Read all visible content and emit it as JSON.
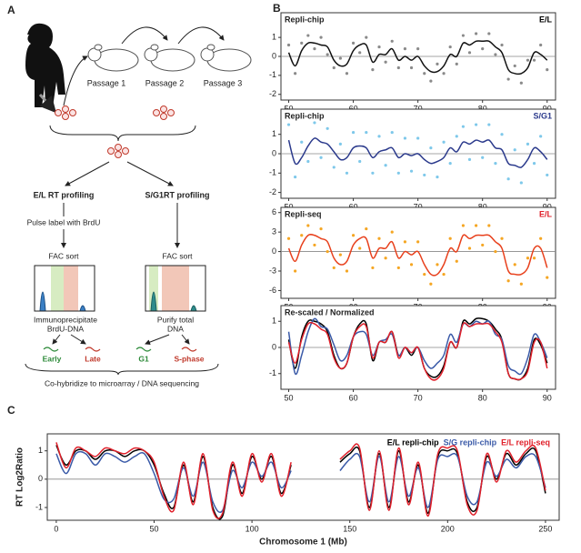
{
  "panel_labels": [
    "A",
    "B",
    "C"
  ],
  "panel_a": {
    "passages": [
      "Passage 1",
      "Passage 2",
      "Passage 3"
    ],
    "left_title": "E/L RT profiling",
    "right_title": "S/G1RT profiling",
    "pulse": "Pulse label with BrdU",
    "left_sort": "FAC sort",
    "right_sort": "FAC sort",
    "left_step": [
      "Immunoprecipitate",
      "BrdU-DNA"
    ],
    "right_step": [
      "Purify total",
      "DNA"
    ],
    "fractions": [
      "Early",
      "Late",
      "G1",
      "S-phase"
    ],
    "footer": "Co-hybridize to microarray / DNA sequencing"
  },
  "chart_data": [
    {
      "type": "line",
      "title": "Repli-chip",
      "label": "E/L",
      "label_color": "#000000",
      "x": [
        50,
        51,
        52,
        53,
        54,
        55,
        56,
        57,
        58,
        59,
        60,
        61,
        62,
        63,
        64,
        65,
        66,
        67,
        68,
        69,
        70,
        71,
        72,
        73,
        74,
        75,
        76,
        77,
        78,
        79,
        80,
        81,
        82,
        83,
        84,
        85,
        86,
        87,
        88,
        89,
        90
      ],
      "xlim": [
        48.8,
        91.3
      ],
      "xticks": [
        50,
        60,
        70,
        80,
        90
      ],
      "ylim": [
        -2.3,
        2.3
      ],
      "yticks": [
        -2,
        -1,
        0,
        1
      ],
      "hline": 0,
      "series": [
        {
          "style": "points",
          "color": "#8a8a8a",
          "values": [
            0.6,
            -0.9,
            0.7,
            1.1,
            0.4,
            1,
            0.1,
            -0.6,
            -0.1,
            -0.9,
            0.7,
            0.2,
            1,
            -0.7,
            0.5,
            -0.3,
            0.8,
            -0.6,
            0.4,
            -0.6,
            0.4,
            -0.9,
            -1.3,
            -0.4,
            -0.9,
            0.5,
            -0.4,
            1.1,
            0.2,
            1.2,
            0.4,
            1.2,
            0.1,
            0.6,
            -1.2,
            -0.5,
            -1.4,
            -0.2,
            -0.2,
            0.6,
            -0.7
          ]
        },
        {
          "style": "line",
          "color": "#111111",
          "values": [
            0.2,
            -0.5,
            0.3,
            0.7,
            0.7,
            0.6,
            0.5,
            -0.2,
            -0.5,
            -0.4,
            0.3,
            0.6,
            0.6,
            -0.3,
            0.1,
            0.1,
            0.4,
            -0.2,
            0,
            -0.2,
            0,
            -0.5,
            -0.8,
            -0.8,
            -0.5,
            0.1,
            0,
            0.7,
            0.6,
            0.8,
            0.8,
            0.8,
            0.5,
            0.2,
            -0.7,
            -0.9,
            -0.9,
            -0.6,
            0.2,
            0.1,
            -0.2
          ]
        }
      ]
    },
    {
      "type": "line",
      "title": "Repli-chip",
      "label": "S/G1",
      "label_color": "#2b3a8c",
      "x": [
        50,
        51,
        52,
        53,
        54,
        55,
        56,
        57,
        58,
        59,
        60,
        61,
        62,
        63,
        64,
        65,
        66,
        67,
        68,
        69,
        70,
        71,
        72,
        73,
        74,
        75,
        76,
        77,
        78,
        79,
        80,
        81,
        82,
        83,
        84,
        85,
        86,
        87,
        88,
        89,
        90
      ],
      "xlim": [
        48.8,
        91.3
      ],
      "xticks": [
        50,
        60,
        70,
        80,
        90
      ],
      "ylim": [
        -2.3,
        2.3
      ],
      "yticks": [
        -2,
        -1,
        0,
        1
      ],
      "hline": 0,
      "series": [
        {
          "style": "points",
          "color": "#7ec8ea",
          "values": [
            1.5,
            -1.2,
            0.6,
            -0.4,
            1.6,
            -0.2,
            1.3,
            -0.7,
            0.5,
            -1,
            1.1,
            -0.4,
            1.1,
            -1,
            0.9,
            -0.6,
            1.1,
            -1,
            0.8,
            -0.9,
            0.8,
            -1.1,
            0.3,
            -1.2,
            0.6,
            -0.5,
            0.9,
            1.4,
            -0.3,
            1.5,
            -0.2,
            1.5,
            -0.5,
            1,
            -1.3,
            0.2,
            -1.5,
            0.5,
            -0.5,
            0.9,
            -1.1
          ]
        },
        {
          "style": "line",
          "color": "#2b3a8c",
          "values": [
            0.7,
            -0.5,
            -0.2,
            0.4,
            0.8,
            0.6,
            0.5,
            0.1,
            -0.3,
            -0.2,
            0.3,
            0.4,
            0.3,
            -0.2,
            0.1,
            0.2,
            0.3,
            -0.2,
            0,
            -0.1,
            0,
            -0.3,
            -0.5,
            -0.4,
            -0.2,
            0.3,
            0.1,
            0.6,
            0.5,
            0.7,
            0.6,
            0.7,
            0.3,
            0.2,
            -0.5,
            -0.6,
            -0.7,
            -0.3,
            0.3,
            0.1,
            -0.3
          ]
        }
      ]
    },
    {
      "type": "line",
      "title": "Repli-seq",
      "label": "E/L",
      "label_color": "#e0202a",
      "x": [
        50,
        51,
        52,
        53,
        54,
        55,
        56,
        57,
        58,
        59,
        60,
        61,
        62,
        63,
        64,
        65,
        66,
        67,
        68,
        69,
        70,
        71,
        72,
        73,
        74,
        75,
        76,
        77,
        78,
        79,
        80,
        81,
        82,
        83,
        84,
        85,
        86,
        87,
        88,
        89,
        90
      ],
      "xlim": [
        48.8,
        91.3
      ],
      "xticks": [
        50,
        60,
        70,
        80,
        90
      ],
      "ylim": [
        -7.2,
        6.8
      ],
      "yticks": [
        -6,
        -3,
        0,
        3,
        6
      ],
      "hline": 0,
      "series": [
        {
          "style": "points",
          "color": "#f5a623",
          "values": [
            2,
            -3,
            2.5,
            4,
            1,
            3.5,
            0,
            -2.5,
            -0.5,
            -3,
            2.5,
            0.5,
            3.5,
            -2.5,
            2,
            -1,
            3,
            -2.5,
            1.5,
            -2,
            1.5,
            -3.5,
            -5,
            -2,
            -3.5,
            2,
            -1.5,
            4,
            0.5,
            4,
            1,
            4,
            0,
            2,
            -4.5,
            -2,
            -5,
            -1,
            -1,
            2,
            -4
          ]
        },
        {
          "style": "line",
          "color": "#e8401c",
          "values": [
            0.5,
            -1.5,
            1,
            2.5,
            2.5,
            2,
            1.5,
            -1,
            -2,
            -1.5,
            1,
            2,
            2,
            -1,
            0.5,
            0.5,
            1.5,
            -1,
            0,
            -0.5,
            0,
            -2,
            -3.5,
            -3.5,
            -2,
            0.5,
            0,
            2.5,
            2,
            2.5,
            2.5,
            2.5,
            1.5,
            0.5,
            -3,
            -3.5,
            -3.5,
            -2.5,
            0.5,
            0.5,
            -2.5
          ]
        }
      ]
    },
    {
      "type": "line",
      "title": "Re-scaled / Normalized",
      "x": [
        50,
        51,
        52,
        53,
        54,
        55,
        56,
        57,
        58,
        59,
        60,
        61,
        62,
        63,
        64,
        65,
        66,
        67,
        68,
        69,
        70,
        71,
        72,
        73,
        74,
        75,
        76,
        77,
        78,
        79,
        80,
        81,
        82,
        83,
        84,
        85,
        86,
        87,
        88,
        89,
        90
      ],
      "xlim": [
        48.8,
        91.3
      ],
      "xticks": [
        50,
        60,
        70,
        80,
        90
      ],
      "ylim": [
        -1.6,
        1.6
      ],
      "yticks": [
        -1,
        0,
        1
      ],
      "hline": 0,
      "series": [
        {
          "style": "line",
          "color": "#000000",
          "values": [
            0.3,
            -0.8,
            0.4,
            1.0,
            1.0,
            0.9,
            0.6,
            -0.3,
            -0.8,
            -0.6,
            0.4,
            0.9,
            0.9,
            -0.5,
            0.2,
            0.2,
            0.6,
            -0.3,
            0,
            -0.3,
            0,
            -0.8,
            -1.1,
            -1.1,
            -0.7,
            0.2,
            0,
            1.0,
            0.9,
            1.1,
            1.1,
            1.0,
            0.7,
            0.3,
            -1.0,
            -1.2,
            -1.2,
            -0.8,
            0.3,
            0.1,
            -0.6
          ]
        },
        {
          "style": "line",
          "color": "#3a5aa8",
          "values": [
            0.6,
            -1.0,
            -0.3,
            0.6,
            1.1,
            0.8,
            0.7,
            0.1,
            -0.5,
            -0.3,
            0.4,
            0.6,
            0.5,
            -0.3,
            0.2,
            0.3,
            0.5,
            -0.3,
            0,
            -0.2,
            0,
            -0.5,
            -0.8,
            -0.6,
            -0.3,
            0.5,
            0.2,
            0.9,
            0.8,
            1.0,
            0.9,
            1.0,
            0.5,
            0.3,
            -0.7,
            -0.9,
            -1.0,
            -0.4,
            0.5,
            0.2,
            -0.4
          ]
        },
        {
          "style": "line",
          "color": "#e0202a",
          "values": [
            0.2,
            -0.6,
            0.3,
            0.9,
            0.9,
            0.7,
            0.5,
            -0.4,
            -0.8,
            -0.6,
            0.4,
            0.8,
            0.8,
            -0.4,
            0.2,
            0.2,
            0.6,
            -0.4,
            0,
            -0.2,
            0,
            -0.8,
            -1.2,
            -1.2,
            -0.8,
            0.2,
            0,
            0.9,
            0.8,
            0.9,
            0.9,
            0.9,
            0.6,
            0.2,
            -1.0,
            -1.2,
            -1.2,
            -0.9,
            0.2,
            0.2,
            -0.8
          ]
        }
      ]
    },
    {
      "type": "line",
      "x_label": "Chromosome 1 (Mb)",
      "y_label": "RT Log2Ratio",
      "x": [
        0,
        5,
        10,
        15,
        20,
        25,
        30,
        35,
        40,
        45,
        50,
        55,
        60,
        65,
        70,
        75,
        80,
        85,
        90,
        95,
        100,
        105,
        110,
        115,
        120,
        125,
        130,
        135,
        140,
        145,
        150,
        155,
        160,
        165,
        170,
        175,
        180,
        185,
        190,
        195,
        200,
        205,
        210,
        215,
        220,
        225,
        230,
        235,
        240,
        245,
        250
      ],
      "xlim": [
        -4.6,
        257
      ],
      "xticks": [
        0,
        50,
        100,
        150,
        200,
        250
      ],
      "ylim": [
        -1.45,
        1.6
      ],
      "yticks": [
        -1,
        0,
        1
      ],
      "hline": 0,
      "series": [
        {
          "name": "E/L repli-chip",
          "style": "line",
          "color": "#000000",
          "values": [
            1.2,
            0.5,
            1,
            1,
            0.7,
            1,
            1,
            0.8,
            1,
            1,
            0.5,
            -0.5,
            -1,
            0.5,
            -0.8,
            0.8,
            -1,
            -1.3,
            0.5,
            -0.5,
            0.8,
            0,
            0.8,
            -0.5,
            0.5,
            null,
            null,
            null,
            null,
            0.6,
            0.9,
            1,
            -1,
            0.9,
            -1,
            1,
            -0.8,
            0.5,
            -1.2,
            0.8,
            1,
            0.9,
            -0.8,
            -1,
            0.8,
            0,
            0.9,
            0.5,
            0.9,
            1,
            -0.5
          ]
        },
        {
          "name": "S/G repli-chip",
          "style": "line",
          "color": "#3a5aa8",
          "values": [
            0.9,
            0.2,
            0.9,
            0.9,
            0.5,
            0.9,
            0.8,
            0.6,
            0.8,
            0.9,
            0.2,
            -0.7,
            -0.7,
            0.4,
            -0.6,
            0.6,
            -0.8,
            -1.1,
            0.3,
            -0.3,
            0.6,
            0.1,
            0.6,
            -0.3,
            0.3,
            null,
            null,
            null,
            null,
            0.3,
            0.7,
            0.8,
            -0.8,
            0.8,
            -0.8,
            0.8,
            -0.6,
            0.4,
            -1,
            0.7,
            0.8,
            0.8,
            -0.6,
            -0.8,
            0.6,
            0.1,
            0.7,
            0.4,
            0.8,
            0.8,
            -0.3
          ]
        },
        {
          "name": "E/L repli-seq",
          "style": "line",
          "color": "#e0202a",
          "values": [
            1.3,
            0.4,
            1.1,
            1,
            0.8,
            1.1,
            1,
            0.9,
            1.1,
            1,
            0.6,
            -0.6,
            -1.1,
            0.6,
            -0.9,
            0.9,
            -1.1,
            -1.2,
            0.6,
            -0.6,
            0.9,
            -0.1,
            0.9,
            -0.6,
            0.6,
            null,
            null,
            null,
            null,
            0.7,
            1,
            1.1,
            -1.1,
            1,
            -1.1,
            1.1,
            -0.9,
            0.6,
            -1.3,
            0.9,
            1.1,
            1,
            -0.9,
            -1.1,
            0.9,
            -0.1,
            1,
            0.6,
            1,
            1.1,
            -0.4
          ]
        }
      ]
    }
  ]
}
